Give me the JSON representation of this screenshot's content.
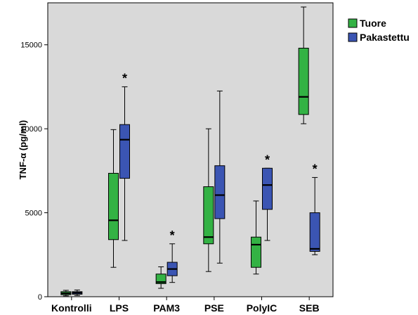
{
  "chart_data": {
    "type": "boxplot",
    "ylabel": "TNF-α (pg/ml)",
    "ylim": [
      0,
      17500
    ],
    "yticks": [
      0,
      5000,
      10000,
      15000
    ],
    "ytick_labels": [
      "0",
      "5000",
      "10000",
      "15000"
    ],
    "categories": [
      "Kontrolli",
      "LPS",
      "PAM3",
      "PSE",
      "PolyIC",
      "SEB"
    ],
    "legend_position": "top-right",
    "grid": false,
    "series": [
      {
        "name": "Tuore",
        "color": "#33b244",
        "boxes": [
          {
            "min": 50,
            "q1": 120,
            "median": 200,
            "q3": 300,
            "max": 380
          },
          {
            "min": 1750,
            "q1": 3400,
            "median": 4550,
            "q3": 7350,
            "max": 9950
          },
          {
            "min": 500,
            "q1": 780,
            "median": 870,
            "q3": 1350,
            "max": 1780
          },
          {
            "min": 1500,
            "q1": 3150,
            "median": 3550,
            "q3": 6550,
            "max": 10000
          },
          {
            "min": 1350,
            "q1": 1750,
            "median": 3100,
            "q3": 3550,
            "max": 5700
          },
          {
            "min": 10300,
            "q1": 10850,
            "median": 11900,
            "q3": 14800,
            "max": 17250
          }
        ],
        "outlier_markers": [
          "",
          "",
          "",
          "",
          "",
          ""
        ]
      },
      {
        "name": "Pakastettu",
        "color": "#3b55b3",
        "boxes": [
          {
            "min": 70,
            "q1": 150,
            "median": 230,
            "q3": 300,
            "max": 400
          },
          {
            "min": 3350,
            "q1": 7050,
            "median": 9350,
            "q3": 10250,
            "max": 12500
          },
          {
            "min": 850,
            "q1": 1250,
            "median": 1650,
            "q3": 2050,
            "max": 3150
          },
          {
            "min": 2000,
            "q1": 4650,
            "median": 6050,
            "q3": 7800,
            "max": 12250
          },
          {
            "min": 3350,
            "q1": 5200,
            "median": 6650,
            "q3": 7650,
            "max": 7650
          },
          {
            "min": 2500,
            "q1": 2700,
            "median": 2850,
            "q3": 5000,
            "max": 7100
          }
        ],
        "outlier_markers": [
          "",
          "*",
          "*",
          "",
          "*",
          "*"
        ]
      }
    ]
  }
}
